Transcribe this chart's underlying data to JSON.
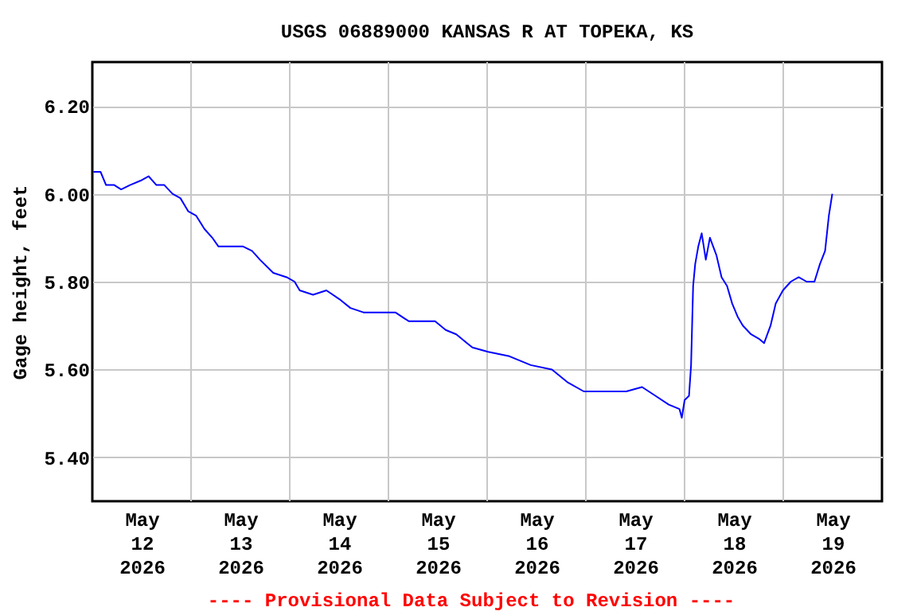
{
  "chart_data": {
    "type": "line",
    "title": "USGS 06889000 KANSAS R AT TOPEKA, KS",
    "ylabel": "Gage height, feet",
    "annotations": [
      "---- Provisional Data Subject to Revision ----"
    ],
    "x": [
      "2026-05-12T00:15",
      "2026-05-12T02:00",
      "2026-05-12T03:20",
      "2026-05-12T05:20",
      "2026-05-12T07:00",
      "2026-05-12T09:10",
      "2026-05-12T11:45",
      "2026-05-12T13:40",
      "2026-05-12T15:35",
      "2026-05-12T17:30",
      "2026-05-12T19:30",
      "2026-05-12T21:25",
      "2026-05-12T23:20",
      "2026-05-13T01:15",
      "2026-05-13T03:15",
      "2026-05-13T05:10",
      "2026-05-13T06:40",
      "2026-05-13T09:00",
      "2026-05-13T12:40",
      "2026-05-13T14:50",
      "2026-05-13T16:45",
      "2026-05-13T20:00",
      "2026-05-13T23:15",
      "2026-05-14T01:10",
      "2026-05-14T02:25",
      "2026-05-14T05:40",
      "2026-05-14T08:55",
      "2026-05-14T12:05",
      "2026-05-14T14:45",
      "2026-05-14T17:55",
      "2026-05-14T21:10",
      "2026-05-15T01:40",
      "2026-05-15T04:55",
      "2026-05-15T08:45",
      "2026-05-15T11:20",
      "2026-05-15T13:55",
      "2026-05-15T16:30",
      "2026-05-15T19:05",
      "2026-05-15T20:25",
      "2026-05-16T00:15",
      "2026-05-16T05:25",
      "2026-05-16T10:35",
      "2026-05-16T15:45",
      "2026-05-16T19:40",
      "2026-05-16T23:30",
      "2026-05-17T04:40",
      "2026-05-17T09:50",
      "2026-05-17T13:40",
      "2026-05-17T16:55",
      "2026-05-17T20:10",
      "2026-05-17T22:45",
      "2026-05-17T23:20",
      "2026-05-18T00:00",
      "2026-05-18T01:05",
      "2026-05-18T01:35",
      "2026-05-18T02:05",
      "2026-05-18T02:35",
      "2026-05-18T03:20",
      "2026-05-18T04:10",
      "2026-05-18T05:10",
      "2026-05-18T06:10",
      "2026-05-18T07:45",
      "2026-05-18T09:00",
      "2026-05-18T10:20",
      "2026-05-18T11:35",
      "2026-05-18T12:55",
      "2026-05-18T14:10",
      "2026-05-18T16:10",
      "2026-05-18T18:05",
      "2026-05-18T19:20",
      "2026-05-18T20:55",
      "2026-05-18T22:10",
      "2026-05-18T23:55",
      "2026-05-19T01:50",
      "2026-05-19T03:45",
      "2026-05-19T05:40",
      "2026-05-19T07:35",
      "2026-05-19T08:55",
      "2026-05-19T10:10",
      "2026-05-19T11:05",
      "2026-05-19T11:55"
    ],
    "series": [
      {
        "color": "#0000ff",
        "values": [
          6.05,
          6.05,
          6.02,
          6.02,
          6.01,
          6.02,
          6.03,
          6.04,
          6.02,
          6.02,
          6.0,
          5.99,
          5.96,
          5.95,
          5.92,
          5.9,
          5.88,
          5.88,
          5.88,
          5.87,
          5.85,
          5.82,
          5.81,
          5.8,
          5.78,
          5.77,
          5.78,
          5.76,
          5.74,
          5.73,
          5.73,
          5.73,
          5.71,
          5.71,
          5.71,
          5.69,
          5.68,
          5.66,
          5.65,
          5.64,
          5.63,
          5.61,
          5.6,
          5.57,
          5.55,
          5.55,
          5.55,
          5.56,
          5.54,
          5.52,
          5.51,
          5.49,
          5.53,
          5.54,
          5.61,
          5.79,
          5.84,
          5.88,
          5.91,
          5.85,
          5.9,
          5.86,
          5.81,
          5.79,
          5.75,
          5.72,
          5.7,
          5.68,
          5.67,
          5.66,
          5.7,
          5.75,
          5.78,
          5.8,
          5.81,
          5.8,
          5.8,
          5.84,
          5.87,
          5.95,
          6.0
        ]
      }
    ],
    "xlim": [
      "2026-05-12T00:00",
      "2026-05-20T00:00"
    ],
    "xticks": [
      {
        "value": "2026-05-12T12:00",
        "label": "May\n12\n2026"
      },
      {
        "value": "2026-05-13T12:00",
        "label": "May\n13\n2026"
      },
      {
        "value": "2026-05-14T12:00",
        "label": "May\n14\n2026"
      },
      {
        "value": "2026-05-15T12:00",
        "label": "May\n15\n2026"
      },
      {
        "value": "2026-05-16T12:00",
        "label": "May\n16\n2026"
      },
      {
        "value": "2026-05-17T12:00",
        "label": "May\n17\n2026"
      },
      {
        "value": "2026-05-18T12:00",
        "label": "May\n18\n2026"
      },
      {
        "value": "2026-05-19T12:00",
        "label": "May\n19\n2026"
      },
      {
        "value": "2026-05-13T00:00",
        "label": null
      },
      {
        "value": "2026-05-14T00:00",
        "label": null
      },
      {
        "value": "2026-05-15T00:00",
        "label": null
      },
      {
        "value": "2026-05-16T00:00",
        "label": null
      },
      {
        "value": "2026-05-17T00:00",
        "label": null
      },
      {
        "value": "2026-05-18T00:00",
        "label": null
      },
      {
        "value": "2026-05-19T00:00",
        "label": null
      }
    ],
    "ylim": [
      5.3,
      6.3
    ],
    "yticks": [
      {
        "value": 5.4,
        "label": "5.40"
      },
      {
        "value": 5.6,
        "label": "5.60"
      },
      {
        "value": 5.8,
        "label": "5.80"
      },
      {
        "value": 6.0,
        "label": "6.00"
      },
      {
        "value": 6.2,
        "label": "6.20"
      }
    ],
    "grid": true,
    "legend": false,
    "marker": "none",
    "line_style": "solid"
  }
}
